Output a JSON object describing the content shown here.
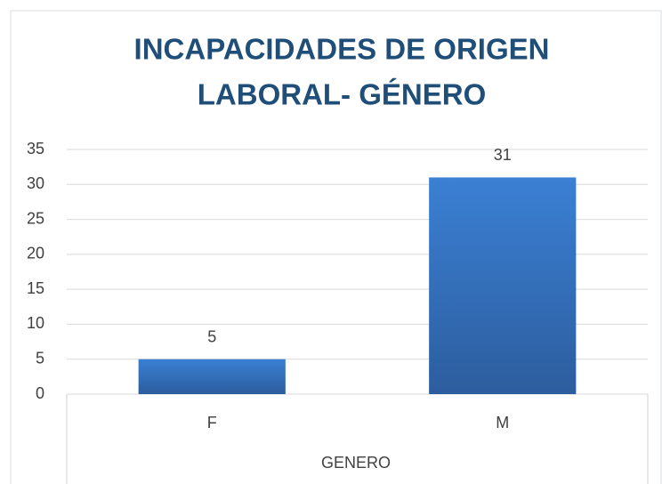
{
  "chart_data": {
    "type": "bar",
    "title": [
      "INCAPACIDADES DE ORIGEN",
      "LABORAL- GÉNERO"
    ],
    "x_label": "GENERO",
    "categories": [
      "F",
      "M"
    ],
    "values": [
      5,
      31
    ],
    "color": "#3575c4",
    "ylim": [
      0,
      35
    ],
    "yticks": [
      0,
      5,
      10,
      15,
      20,
      25,
      30,
      35
    ],
    "grid": true
  }
}
